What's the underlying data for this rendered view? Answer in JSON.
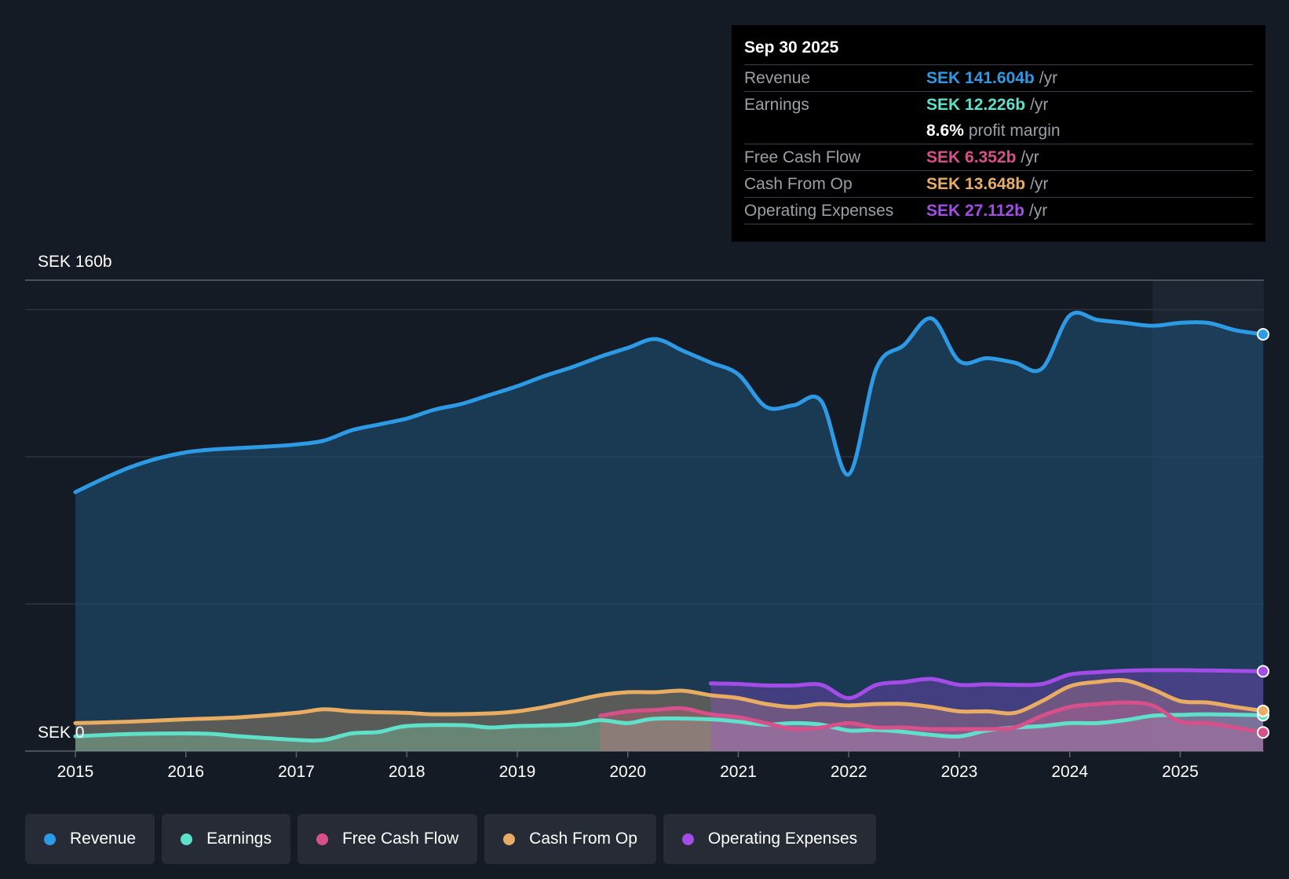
{
  "tooltip": {
    "date": "Sep 30 2025",
    "rows": [
      {
        "label": "Revenue",
        "value": "SEK 141.604b",
        "unit": "/yr",
        "color": "#2d9ae5"
      },
      {
        "label": "Earnings",
        "value": "SEK 12.226b",
        "unit": "/yr",
        "color": "#5fe0c9"
      },
      {
        "label": "",
        "value": "8.6%",
        "unit": "profit margin",
        "color": "#ffffff"
      },
      {
        "label": "Free Cash Flow",
        "value": "SEK 6.352b",
        "unit": "/yr",
        "color": "#d8508a"
      },
      {
        "label": "Cash From Op",
        "value": "SEK 13.648b",
        "unit": "/yr",
        "color": "#e8ad62"
      },
      {
        "label": "Operating Expenses",
        "value": "SEK 27.112b",
        "unit": "/yr",
        "color": "#a34ce8"
      }
    ]
  },
  "legend": [
    {
      "label": "Revenue",
      "color": "#2d9ae5"
    },
    {
      "label": "Earnings",
      "color": "#5fe0c9"
    },
    {
      "label": "Free Cash Flow",
      "color": "#d8508a"
    },
    {
      "label": "Cash From Op",
      "color": "#e8ad62"
    },
    {
      "label": "Operating Expenses",
      "color": "#a34ce8"
    }
  ],
  "chart_data": {
    "type": "area",
    "title": "",
    "xlabel": "",
    "ylabel": "",
    "ylim": [
      0,
      160
    ],
    "xlim": [
      2015,
      2025.75
    ],
    "y_top_label": "SEK 160b",
    "y_bottom_label": "SEK 0",
    "x_ticks": [
      "2015",
      "2016",
      "2017",
      "2018",
      "2019",
      "2020",
      "2021",
      "2022",
      "2023",
      "2024",
      "2025"
    ],
    "forecast_start": 2024.75,
    "series": [
      {
        "name": "Revenue",
        "color": "#2d9ae5",
        "fill": true,
        "points": [
          [
            2015,
            88
          ],
          [
            2015.25,
            92.5
          ],
          [
            2015.5,
            96.5
          ],
          [
            2015.75,
            99.5
          ],
          [
            2016,
            101.5
          ],
          [
            2016.25,
            102.5
          ],
          [
            2016.5,
            103
          ],
          [
            2016.75,
            103.5
          ],
          [
            2017,
            104.2
          ],
          [
            2017.25,
            105.5
          ],
          [
            2017.5,
            109
          ],
          [
            2017.75,
            111
          ],
          [
            2018,
            113
          ],
          [
            2018.25,
            116
          ],
          [
            2018.5,
            118
          ],
          [
            2018.75,
            121
          ],
          [
            2019,
            124
          ],
          [
            2019.25,
            127.5
          ],
          [
            2019.5,
            130.5
          ],
          [
            2019.75,
            134
          ],
          [
            2020,
            137
          ],
          [
            2020.25,
            140
          ],
          [
            2020.5,
            136
          ],
          [
            2020.75,
            132
          ],
          [
            2021,
            128
          ],
          [
            2021.25,
            117
          ],
          [
            2021.5,
            117.5
          ],
          [
            2021.75,
            119
          ],
          [
            2022,
            94
          ],
          [
            2022.25,
            130
          ],
          [
            2022.5,
            138
          ],
          [
            2022.75,
            147
          ],
          [
            2023,
            132.5
          ],
          [
            2023.25,
            133.5
          ],
          [
            2023.5,
            132
          ],
          [
            2023.75,
            130
          ],
          [
            2024,
            148
          ],
          [
            2024.25,
            146.5
          ],
          [
            2024.5,
            145.5
          ],
          [
            2024.75,
            144.5
          ],
          [
            2025,
            145.5
          ],
          [
            2025.25,
            145.5
          ],
          [
            2025.5,
            143
          ],
          [
            2025.75,
            141.6
          ]
        ]
      },
      {
        "name": "Earnings",
        "color": "#5fe0c9",
        "fill": true,
        "points": [
          [
            2015,
            5
          ],
          [
            2015.5,
            5.8
          ],
          [
            2016,
            6
          ],
          [
            2016.25,
            5.8
          ],
          [
            2016.5,
            5
          ],
          [
            2017,
            3.8
          ],
          [
            2017.25,
            3.8
          ],
          [
            2017.5,
            6
          ],
          [
            2017.75,
            6.5
          ],
          [
            2018,
            8.5
          ],
          [
            2018.5,
            8.8
          ],
          [
            2018.75,
            8
          ],
          [
            2019,
            8.5
          ],
          [
            2019.5,
            9
          ],
          [
            2019.75,
            10.5
          ],
          [
            2020,
            9.5
          ],
          [
            2020.25,
            11
          ],
          [
            2020.75,
            10.8
          ],
          [
            2021,
            10
          ],
          [
            2021.25,
            9
          ],
          [
            2021.5,
            9.5
          ],
          [
            2021.75,
            9
          ],
          [
            2022,
            7
          ],
          [
            2022.25,
            7.2
          ],
          [
            2022.5,
            6.5
          ],
          [
            2022.75,
            5.5
          ],
          [
            2023,
            5
          ],
          [
            2023.25,
            7
          ],
          [
            2023.5,
            8
          ],
          [
            2023.75,
            8.5
          ],
          [
            2024,
            9.5
          ],
          [
            2024.25,
            9.5
          ],
          [
            2024.5,
            10.5
          ],
          [
            2024.75,
            12
          ],
          [
            2025,
            12.3
          ],
          [
            2025.25,
            12.5
          ],
          [
            2025.75,
            12.2
          ]
        ]
      },
      {
        "name": "Free Cash Flow",
        "color": "#d8508a",
        "fill": true,
        "points": [
          [
            2019.75,
            12
          ],
          [
            2020,
            13.5
          ],
          [
            2020.25,
            14
          ],
          [
            2020.5,
            14.5
          ],
          [
            2020.75,
            12.5
          ],
          [
            2021,
            11.5
          ],
          [
            2021.25,
            9.5
          ],
          [
            2021.5,
            7.5
          ],
          [
            2021.75,
            8
          ],
          [
            2022,
            9.5
          ],
          [
            2022.25,
            8
          ],
          [
            2022.5,
            8
          ],
          [
            2022.75,
            7.5
          ],
          [
            2023,
            7.5
          ],
          [
            2023.25,
            7.5
          ],
          [
            2023.5,
            8
          ],
          [
            2023.75,
            12
          ],
          [
            2024,
            15
          ],
          [
            2024.25,
            16
          ],
          [
            2024.5,
            16.5
          ],
          [
            2024.75,
            15.5
          ],
          [
            2025,
            10
          ],
          [
            2025.25,
            9.5
          ],
          [
            2025.5,
            8
          ],
          [
            2025.75,
            6.35
          ]
        ]
      },
      {
        "name": "Cash From Op",
        "color": "#e8ad62",
        "fill": true,
        "points": [
          [
            2015,
            9.5
          ],
          [
            2015.5,
            10
          ],
          [
            2016,
            10.8
          ],
          [
            2016.5,
            11.5
          ],
          [
            2017,
            13
          ],
          [
            2017.25,
            14.2
          ],
          [
            2017.5,
            13.5
          ],
          [
            2017.75,
            13.2
          ],
          [
            2018,
            13
          ],
          [
            2018.25,
            12.5
          ],
          [
            2018.75,
            12.8
          ],
          [
            2019,
            13.5
          ],
          [
            2019.25,
            15
          ],
          [
            2019.5,
            17
          ],
          [
            2019.75,
            19
          ],
          [
            2020,
            20
          ],
          [
            2020.25,
            20
          ],
          [
            2020.5,
            20.5
          ],
          [
            2020.75,
            19
          ],
          [
            2021,
            18
          ],
          [
            2021.25,
            16
          ],
          [
            2021.5,
            15
          ],
          [
            2021.75,
            16
          ],
          [
            2022,
            15.5
          ],
          [
            2022.25,
            16
          ],
          [
            2022.5,
            16
          ],
          [
            2022.75,
            15
          ],
          [
            2023,
            13.5
          ],
          [
            2023.25,
            13.5
          ],
          [
            2023.5,
            13
          ],
          [
            2023.75,
            17
          ],
          [
            2024,
            22
          ],
          [
            2024.25,
            23.5
          ],
          [
            2024.5,
            24
          ],
          [
            2024.75,
            21
          ],
          [
            2025,
            17
          ],
          [
            2025.25,
            16.5
          ],
          [
            2025.5,
            15
          ],
          [
            2025.75,
            13.65
          ]
        ]
      },
      {
        "name": "Operating Expenses",
        "color": "#a34ce8",
        "fill": true,
        "points": [
          [
            2020.75,
            23
          ],
          [
            2021,
            22.8
          ],
          [
            2021.25,
            22.3
          ],
          [
            2021.5,
            22.3
          ],
          [
            2021.75,
            22.5
          ],
          [
            2022,
            18
          ],
          [
            2022.25,
            22.5
          ],
          [
            2022.5,
            23.5
          ],
          [
            2022.75,
            24.5
          ],
          [
            2023,
            22.5
          ],
          [
            2023.25,
            22.7
          ],
          [
            2023.5,
            22.5
          ],
          [
            2023.75,
            22.8
          ],
          [
            2024,
            26
          ],
          [
            2024.25,
            26.8
          ],
          [
            2024.5,
            27.3
          ],
          [
            2024.75,
            27.5
          ],
          [
            2025,
            27.5
          ],
          [
            2025.25,
            27.4
          ],
          [
            2025.75,
            27.1
          ]
        ]
      }
    ]
  }
}
